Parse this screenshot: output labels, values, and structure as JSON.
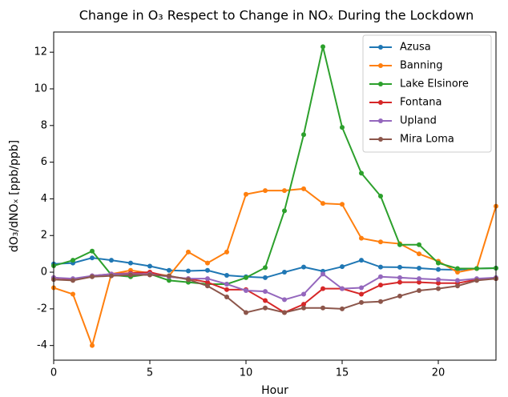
{
  "chart_data": {
    "type": "line",
    "title": "Change in O₃ Respect to Change in NOₓ During the Lockdown",
    "x_label": "Hour",
    "y_label": "dO₃/dNOₓ [ppb/ppb]",
    "x": [
      0,
      1,
      2,
      3,
      4,
      5,
      6,
      7,
      8,
      9,
      10,
      11,
      12,
      13,
      14,
      15,
      16,
      17,
      18,
      19,
      20,
      21,
      22,
      23
    ],
    "xlim": [
      0,
      23
    ],
    "ylim": [
      -4.8,
      13.1
    ],
    "xticks": [
      0,
      5,
      10,
      15,
      20
    ],
    "yticks": [
      -4,
      -2,
      0,
      2,
      4,
      6,
      8,
      10,
      12
    ],
    "legend": "upper right",
    "series": [
      {
        "name": "Azusa",
        "color": "#1f77b4",
        "values": [
          0.45,
          0.5,
          0.78,
          0.65,
          0.5,
          0.33,
          0.1,
          0.07,
          0.1,
          -0.17,
          -0.25,
          -0.3,
          0.0,
          0.28,
          0.05,
          0.3,
          0.65,
          0.28,
          0.27,
          0.22,
          0.15,
          0.13,
          0.2,
          0.22
        ]
      },
      {
        "name": "Banning",
        "color": "#ff7f0e",
        "values": [
          -0.85,
          -1.2,
          -4.0,
          -0.1,
          0.1,
          -0.05,
          -0.2,
          1.1,
          0.5,
          1.1,
          4.25,
          4.45,
          4.45,
          4.55,
          3.75,
          3.7,
          1.85,
          1.65,
          1.55,
          1.0,
          0.6,
          0.0,
          0.2,
          3.6
        ]
      },
      {
        "name": "Lake Elsinore",
        "color": "#2ca02c",
        "values": [
          0.35,
          0.65,
          1.15,
          -0.15,
          -0.25,
          -0.1,
          -0.45,
          -0.55,
          -0.65,
          -0.65,
          -0.3,
          0.25,
          3.35,
          7.5,
          12.3,
          7.9,
          5.4,
          4.15,
          1.5,
          1.5,
          0.5,
          0.2,
          0.2,
          0.22
        ]
      },
      {
        "name": "Fontana",
        "color": "#d62728",
        "values": [
          -0.3,
          -0.4,
          -0.2,
          -0.1,
          -0.05,
          0.0,
          -0.25,
          -0.35,
          -0.55,
          -0.95,
          -0.95,
          -1.55,
          -2.2,
          -1.75,
          -0.9,
          -0.9,
          -1.2,
          -0.7,
          -0.55,
          -0.55,
          -0.6,
          -0.6,
          -0.4,
          -0.35
        ]
      },
      {
        "name": "Upland",
        "color": "#9467bd",
        "values": [
          -0.3,
          -0.35,
          -0.2,
          -0.1,
          -0.1,
          -0.1,
          -0.25,
          -0.35,
          -0.35,
          -0.65,
          -1.0,
          -1.05,
          -1.5,
          -1.2,
          -0.1,
          -0.9,
          -0.85,
          -0.25,
          -0.3,
          -0.35,
          -0.4,
          -0.45,
          -0.35,
          -0.3
        ]
      },
      {
        "name": "Mira Loma",
        "color": "#8c564b",
        "values": [
          -0.4,
          -0.45,
          -0.25,
          -0.2,
          -0.15,
          -0.15,
          -0.2,
          -0.4,
          -0.75,
          -1.35,
          -2.2,
          -1.95,
          -2.2,
          -1.95,
          -1.95,
          -2.0,
          -1.65,
          -1.6,
          -1.3,
          -1.0,
          -0.9,
          -0.75,
          -0.45,
          -0.35
        ]
      }
    ]
  }
}
